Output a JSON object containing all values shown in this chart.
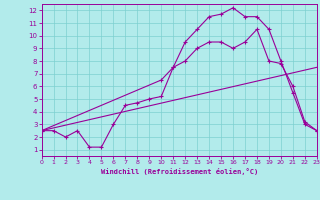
{
  "xlabel": "Windchill (Refroidissement éolien,°C)",
  "background_color": "#b2ebeb",
  "grid_color": "#7dd0d0",
  "line_color": "#990099",
  "xlim": [
    0,
    23
  ],
  "ylim": [
    0.5,
    12.5
  ],
  "xticks": [
    0,
    1,
    2,
    3,
    4,
    5,
    6,
    7,
    8,
    9,
    10,
    11,
    12,
    13,
    14,
    15,
    16,
    17,
    18,
    19,
    20,
    21,
    22,
    23
  ],
  "yticks": [
    1,
    2,
    3,
    4,
    5,
    6,
    7,
    8,
    9,
    10,
    11,
    12
  ],
  "line1_x": [
    0,
    1,
    2,
    3,
    4,
    5,
    6,
    7,
    8,
    9,
    10,
    11,
    12,
    13,
    14,
    15,
    16,
    17,
    18,
    19,
    20,
    21,
    22,
    23
  ],
  "line1_y": [
    2.5,
    2.5,
    2.0,
    2.5,
    1.2,
    1.2,
    3.0,
    4.5,
    4.7,
    5.0,
    5.2,
    7.5,
    9.5,
    10.5,
    11.5,
    11.7,
    12.2,
    11.5,
    11.5,
    10.5,
    8.0,
    5.5,
    3.0,
    2.5
  ],
  "line2_x": [
    0,
    10,
    11,
    12,
    13,
    14,
    15,
    16,
    17,
    18,
    19,
    20,
    21,
    22,
    23
  ],
  "line2_y": [
    2.5,
    6.5,
    7.5,
    8.0,
    9.0,
    9.5,
    9.5,
    9.0,
    9.5,
    10.5,
    8.0,
    7.8,
    6.0,
    3.2,
    2.5
  ],
  "line3_x": [
    0,
    23
  ],
  "line3_y": [
    2.5,
    7.5
  ]
}
